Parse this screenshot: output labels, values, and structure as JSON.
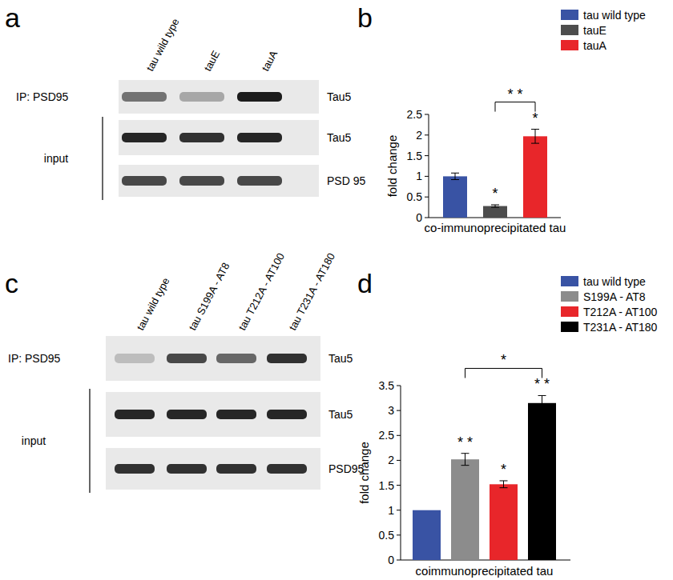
{
  "panels": [
    "a",
    "b",
    "c",
    "d"
  ],
  "blots": [
    {
      "lanes": [
        "tau wild type",
        "tauE",
        "tauA"
      ],
      "input_label": "input",
      "rows": [
        {
          "left": "IP: PSD95",
          "right": "Tau5",
          "intensity": [
            0.55,
            0.3,
            0.95
          ]
        },
        {
          "right": "Tau5",
          "intensity": [
            0.9,
            0.85,
            0.9
          ]
        },
        {
          "right": "PSD 95",
          "intensity": [
            0.75,
            0.75,
            0.75
          ]
        }
      ]
    },
    {
      "lanes": [
        "tau wild type",
        "tau  S199A - AT8",
        "tau  T212A - AT100",
        "tau  T231A - AT180"
      ],
      "input_label": "input",
      "rows": [
        {
          "left": "IP: PSD95",
          "right": "Tau5",
          "intensity": [
            0.2,
            0.75,
            0.6,
            0.85
          ]
        },
        {
          "right": "Tau5",
          "intensity": [
            0.9,
            0.9,
            0.9,
            0.9
          ]
        },
        {
          "right": "PSD95",
          "intensity": [
            0.85,
            0.85,
            0.85,
            0.85
          ]
        }
      ]
    }
  ],
  "chart_data": [
    {
      "type": "bar",
      "y_label": "fold change",
      "categories": [
        "co-immunoprecipitated tau"
      ],
      "series": [
        {
          "name": "tau wild type",
          "color": "#3953a4",
          "values": [
            1.0
          ],
          "errors": [
            0.08
          ]
        },
        {
          "name": "tauE",
          "color": "#4d4d4d",
          "values": [
            0.28
          ],
          "errors": [
            0.03
          ]
        },
        {
          "name": "tauA",
          "color": "#e8262a",
          "values": [
            1.97
          ],
          "errors": [
            0.17
          ]
        }
      ],
      "ylim": [
        0,
        2.5
      ],
      "yticks": [
        0,
        0.5,
        1,
        1.5,
        2,
        2.5
      ],
      "grid": false,
      "legend": "top-right",
      "annotations": [
        {
          "text": "*",
          "series": 1
        },
        {
          "text": "*",
          "series": 2
        }
      ],
      "brackets": [
        {
          "text": "* *",
          "from": 1,
          "to": 2
        }
      ]
    },
    {
      "type": "bar",
      "y_label": "fold change",
      "categories": [
        "coimmunoprecipitated tau"
      ],
      "series": [
        {
          "name": "tau wild type",
          "color": "#3953a4",
          "values": [
            1.0
          ],
          "errors": [
            0
          ]
        },
        {
          "name": "S199A - AT8",
          "color": "#8c8c8c",
          "values": [
            2.02
          ],
          "errors": [
            0.12
          ]
        },
        {
          "name": "T212A - AT100",
          "color": "#e8262a",
          "values": [
            1.52
          ],
          "errors": [
            0.07
          ]
        },
        {
          "name": "T231A - AT180",
          "color": "#000000",
          "values": [
            3.15
          ],
          "errors": [
            0.15
          ]
        }
      ],
      "ylim": [
        0,
        3.5
      ],
      "yticks": [
        0,
        0.5,
        1,
        1.5,
        2,
        2.5,
        3,
        3.5
      ],
      "grid": false,
      "legend": "top-right",
      "annotations": [
        {
          "text": "* *",
          "series": 1
        },
        {
          "text": "*",
          "series": 2
        },
        {
          "text": "* *",
          "series": 3
        }
      ],
      "brackets": [
        {
          "text": "*",
          "from": 1,
          "to": 3
        }
      ]
    }
  ]
}
